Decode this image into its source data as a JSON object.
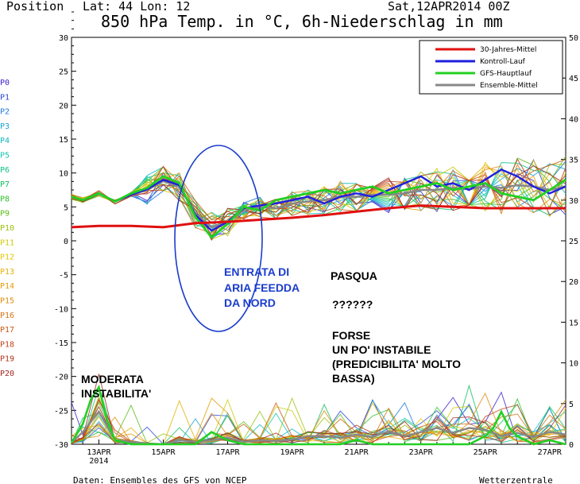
{
  "header": {
    "position_label": "Position",
    "lat_lon": "Lat: 44 Lon: 12",
    "run": "Sat,12APR2014 00Z",
    "title": "850 hPa Temp. in °C, 6h-Niederschlag in mm"
  },
  "footer": {
    "source": "Daten: Ensembles des GFS von NCEP",
    "brand": "Wetterzentrale"
  },
  "members": [
    "P0",
    "P1",
    "P2",
    "P3",
    "P4",
    "P5",
    "P6",
    "P7",
    "P8",
    "P9",
    "P10",
    "P11",
    "P12",
    "P13",
    "P14",
    "P15",
    "P16",
    "P17",
    "P18",
    "P19",
    "P20"
  ],
  "member_colors": [
    "#3c1fc8",
    "#2a46d8",
    "#1c78d8",
    "#12a2d2",
    "#10b8c0",
    "#12c6b0",
    "#10c488",
    "#10c060",
    "#2cc02a",
    "#5cbc18",
    "#9cc010",
    "#d0c808",
    "#e4c404",
    "#e4b004",
    "#e49c08",
    "#e08a0a",
    "#d8720e",
    "#cc5812",
    "#c04418",
    "#b0341c",
    "#a0281e"
  ],
  "annotations": {
    "entrata": [
      "ENTRATA DI",
      "ARIA FEEDDA",
      "DA NORD"
    ],
    "pasqua": "PASQUA",
    "question": "??????",
    "forse": [
      "FORSE",
      "UN PO' INSTABILE",
      "(PREDICIBILITA' MOLTO",
      "BASSA)"
    ],
    "moderata": [
      "MODERATA",
      "INSTABILITA'"
    ]
  },
  "chart_data": {
    "type": "line",
    "title": "850 hPa Temp. in °C, 6h-Niederschlag in mm",
    "x_tick_labels": [
      "13APR",
      "15APR",
      "17APR",
      "19APR",
      "21APR",
      "23APR",
      "25APR",
      "27APR"
    ],
    "x_tick_days": [
      1,
      3,
      5,
      7,
      9,
      11,
      13,
      15
    ],
    "first_tick_year": "2014",
    "xlim_days": [
      0.15,
      15.5
    ],
    "ylim_left": [
      -30,
      30
    ],
    "yticks_left": [
      -30,
      -25,
      -20,
      -15,
      -10,
      -5,
      0,
      5,
      10,
      15,
      20,
      25,
      30
    ],
    "ylim_right": [
      0,
      50
    ],
    "yticks_right": [
      0,
      5,
      10,
      15,
      20,
      25,
      30,
      35,
      40,
      45,
      50
    ],
    "legend_position": "top-right",
    "legend": [
      {
        "name": "30-Jahres-Mittel",
        "color": "#e01010"
      },
      {
        "name": "Kontroll-Lauf",
        "color": "#1f1fe0"
      },
      {
        "name": "GFS-Hauptlauf",
        "color": "#22d022"
      },
      {
        "name": "Ensemble-Mittel",
        "color": "#888888"
      }
    ],
    "climate_mean": {
      "name": "30-Jahres-Mittel",
      "days": [
        0.15,
        1,
        2,
        3,
        4,
        5,
        6,
        7,
        8,
        9,
        10,
        11,
        12,
        13,
        14,
        15,
        15.5
      ],
      "values": [
        2.0,
        2.2,
        2.2,
        2.0,
        2.6,
        2.8,
        3.1,
        3.4,
        3.8,
        4.3,
        4.8,
        5.2,
        5.0,
        4.8,
        4.8,
        4.8,
        4.8
      ]
    },
    "ensemble_mean": {
      "name": "Ensemble-Mittel",
      "days": [
        0.15,
        0.5,
        1,
        1.5,
        2,
        2.5,
        3,
        3.5,
        4,
        4.5,
        5,
        5.5,
        6,
        6.5,
        7,
        7.5,
        8,
        8.5,
        9,
        9.5,
        10,
        10.5,
        11,
        11.5,
        12,
        12.5,
        13,
        13.5,
        14,
        14.5,
        15,
        15.5
      ],
      "values": [
        6.5,
        6.0,
        7.0,
        5.8,
        6.8,
        7.5,
        8.8,
        8.0,
        4.0,
        2.0,
        2.8,
        4.5,
        5.0,
        4.8,
        5.5,
        5.8,
        6.0,
        6.5,
        6.5,
        6.8,
        6.8,
        7.0,
        7.5,
        7.5,
        7.8,
        7.6,
        8.0,
        7.8,
        8.2,
        8.0,
        7.5,
        8.0
      ]
    },
    "gfs_operational": {
      "name": "GFS-Hauptlauf",
      "days": [
        0.15,
        0.5,
        1,
        1.5,
        2,
        2.5,
        3,
        3.5,
        4,
        4.5,
        5,
        5.5,
        6,
        6.5,
        7,
        7.5,
        8,
        8.5,
        9,
        9.5,
        10,
        10.5,
        11,
        11.5,
        12,
        12.5,
        13,
        13.5,
        14,
        14.5,
        15,
        15.5
      ],
      "values": [
        6.5,
        6.0,
        7.0,
        5.8,
        7.0,
        7.8,
        9.5,
        8.5,
        3.5,
        0.5,
        2.5,
        5.0,
        4.5,
        6.0,
        6.5,
        7.0,
        7.5,
        7.0,
        7.5,
        8.0,
        7.0,
        7.5,
        8.0,
        8.5,
        7.5,
        8.0,
        8.5,
        7.0,
        6.5,
        6.0,
        7.5,
        9.0
      ]
    },
    "control_run": {
      "name": "Kontroll-Lauf",
      "days": [
        0.15,
        0.5,
        1,
        1.5,
        2,
        2.5,
        3,
        3.5,
        4,
        4.5,
        5,
        5.5,
        6,
        6.5,
        7,
        7.5,
        8,
        8.5,
        9,
        9.5,
        10,
        10.5,
        11,
        11.5,
        12,
        12.5,
        13,
        13.5,
        14,
        14.5,
        15,
        15.5
      ],
      "values": [
        6.5,
        6.0,
        7.0,
        5.8,
        6.8,
        7.6,
        9.0,
        8.2,
        3.8,
        1.5,
        2.8,
        4.8,
        5.2,
        5.5,
        6.0,
        6.5,
        5.5,
        6.5,
        7.0,
        6.5,
        7.5,
        8.5,
        9.5,
        8.0,
        8.5,
        7.5,
        9.0,
        10.5,
        9.5,
        8.0,
        7.0,
        8.0
      ]
    },
    "precip_mean": {
      "name": "Ensemble-Mittel (Niederschlag, mm)",
      "days": [
        0.15,
        0.5,
        1,
        1.5,
        2,
        2.5,
        3,
        3.5,
        4,
        4.5,
        5,
        5.5,
        6,
        6.5,
        7,
        7.5,
        8,
        8.5,
        9,
        9.5,
        10,
        10.5,
        11,
        11.5,
        12,
        12.5,
        13,
        13.5,
        14,
        14.5,
        15,
        15.5
      ],
      "values": [
        0.2,
        1.5,
        4.0,
        0.5,
        0.3,
        0.1,
        0.0,
        0.5,
        0.3,
        0.5,
        0.8,
        0.3,
        0.5,
        0.4,
        0.6,
        1.0,
        1.0,
        0.8,
        1.2,
        0.9,
        1.6,
        1.0,
        1.5,
        2.0,
        1.4,
        2.0,
        1.8,
        1.0,
        1.4,
        0.9,
        1.5,
        1.2
      ]
    },
    "precip_gfs": {
      "name": "GFS-Hauptlauf (Niederschlag, mm)",
      "days": [
        0.15,
        0.5,
        0.75,
        1,
        1.25,
        1.5,
        2,
        2.5,
        3,
        3.5,
        4,
        4.5,
        5,
        5.5,
        6,
        6.5,
        7,
        7.5,
        8,
        8.5,
        9,
        9.5,
        10,
        10.5,
        11,
        11.5,
        12,
        12.5,
        13,
        13.25,
        13.5,
        13.75,
        14,
        14.5,
        15,
        15.5
      ],
      "values": [
        0.2,
        2.5,
        5.5,
        7.0,
        3.0,
        0.5,
        0.0,
        0.0,
        0.0,
        0.0,
        0.0,
        1.5,
        0.5,
        0.0,
        0.0,
        0.0,
        0.0,
        0.0,
        0.0,
        0.0,
        0.5,
        0.0,
        0.0,
        0.0,
        0.0,
        0.0,
        0.0,
        0.0,
        1.0,
        2.0,
        4.0,
        2.0,
        1.0,
        0.0,
        0.5,
        0.0
      ]
    }
  }
}
